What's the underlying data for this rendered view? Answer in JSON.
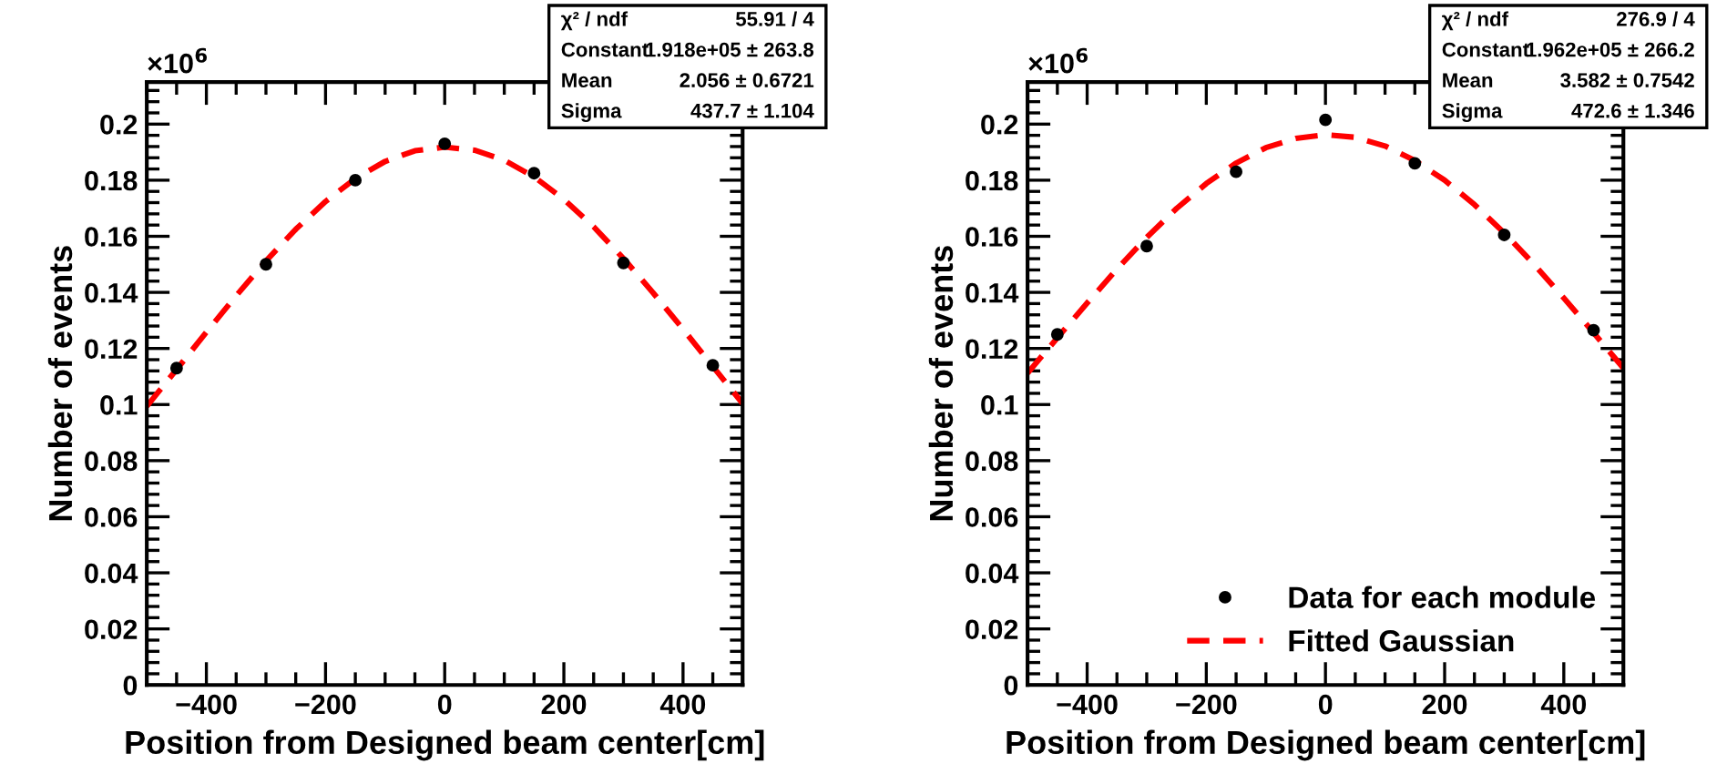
{
  "chart_data": [
    {
      "type": "scatter",
      "xlabel": "Position from Designed beam center[cm]",
      "ylabel": "Number of events",
      "annotations": [
        "×10$^{6}$",
        "χ² / ndf",
        "55.91 / 4",
        "Constant",
        "1.918e+05 ± 263.8",
        "Mean",
        "2.056 ± 0.6721",
        "Sigma",
        "437.7 ± 1.104"
      ],
      "xlim": [
        -500,
        500
      ],
      "ylim": [
        0,
        0.215
      ],
      "xticks": [
        -400,
        -200,
        0,
        200,
        400
      ],
      "yticks": [
        0,
        0.02,
        0.04,
        0.06,
        0.08,
        0.1,
        0.12,
        0.14,
        0.16,
        0.18,
        0.2
      ],
      "legend": false,
      "series": [
        {
          "marker": "circle",
          "color": "#000000",
          "x": [
            -450,
            -300,
            -150,
            0,
            150,
            300,
            450
          ],
          "values": [
            0.113,
            0.15,
            0.18,
            0.193,
            0.1825,
            0.1505,
            0.114
          ]
        },
        {
          "type": "line",
          "color": "#ff0000",
          "line_style": "dashed",
          "x": [
            -500,
            -450,
            -400,
            -350,
            -300,
            -250,
            -200,
            -150,
            -100,
            -50,
            0,
            50,
            100,
            150,
            200,
            250,
            300,
            350,
            400,
            450,
            500
          ],
          "values": [
            0.0994,
            0.1125,
            0.1258,
            0.1388,
            0.1512,
            0.1625,
            0.1724,
            0.1806,
            0.1867,
            0.1905,
            0.1918,
            0.1907,
            0.1871,
            0.1812,
            0.1732,
            0.1634,
            0.1521,
            0.1398,
            0.1269,
            0.1136,
            0.1004
          ]
        }
      ]
    },
    {
      "type": "scatter",
      "xlabel": "Position from Designed beam center[cm]",
      "ylabel": "Number of events",
      "annotations": [
        "×10$^{6}$",
        "χ² / ndf",
        "276.9 / 4",
        "Constant",
        "1.962e+05 ± 266.2",
        "Mean",
        "3.582 ± 0.7542",
        "Sigma",
        "472.6 ± 1.346"
      ],
      "xlim": [
        -500,
        500
      ],
      "ylim": [
        0,
        0.215
      ],
      "xticks": [
        -400,
        -200,
        0,
        200,
        400
      ],
      "yticks": [
        0,
        0.02,
        0.04,
        0.06,
        0.08,
        0.1,
        0.12,
        0.14,
        0.16,
        0.18,
        0.2
      ],
      "legend": "bottom right",
      "series": [
        {
          "marker": "circle",
          "name": "Data for each module",
          "color": "#000000",
          "x": [
            -450,
            -300,
            -150,
            0,
            150,
            300,
            450
          ],
          "values": [
            0.125,
            0.1565,
            0.183,
            0.2015,
            0.186,
            0.1605,
            0.1265
          ]
        },
        {
          "type": "line",
          "name": "Fitted Gaussian",
          "color": "#ff0000",
          "line_style": "dashed",
          "x": [
            -500,
            -450,
            -400,
            -350,
            -300,
            -250,
            -200,
            -150,
            -100,
            -50,
            0,
            50,
            100,
            150,
            200,
            250,
            300,
            350,
            400,
            450,
            500
          ],
          "values": [
            0.1112,
            0.1238,
            0.1362,
            0.1483,
            0.1596,
            0.1699,
            0.1788,
            0.1861,
            0.1916,
            0.1949,
            0.1962,
            0.1953,
            0.1922,
            0.187,
            0.18,
            0.1713,
            0.1612,
            0.15,
            0.138,
            0.1256,
            0.113
          ]
        }
      ]
    }
  ]
}
